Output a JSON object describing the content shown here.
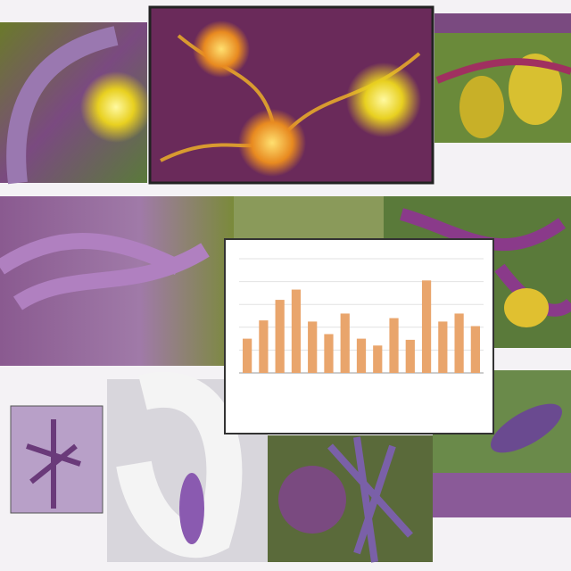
{
  "chart_data": {
    "type": "bar",
    "categories": [
      null,
      null,
      null,
      null,
      null,
      null,
      null,
      null,
      null,
      null,
      null,
      null,
      null,
      null,
      null
    ],
    "values": [
      30,
      46,
      64,
      73,
      45,
      34,
      52,
      30,
      24,
      48,
      29,
      81,
      45,
      52,
      41
    ],
    "color": "#e9a56c",
    "ylim": [
      0,
      100
    ],
    "grid": true
  }
}
